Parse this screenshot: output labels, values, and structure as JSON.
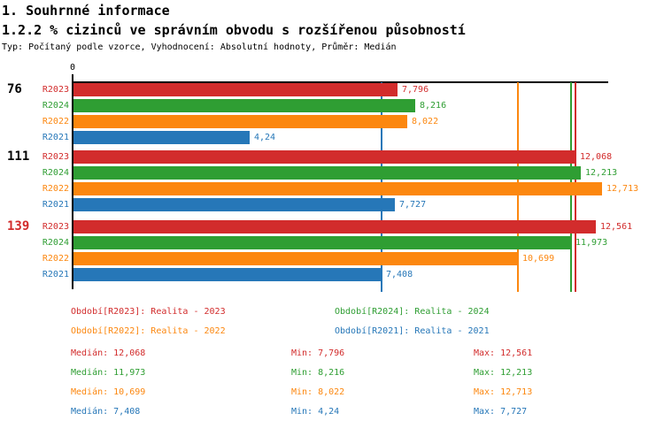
{
  "header": {
    "title": "1. Souhrnné informace",
    "subtitle": "1.2.2 % cizinců ve správním obvodu s rozšířenou působností",
    "meta": "Typ: Počítaný podle vzorce, Vyhodnocení: Absolutní hodnoty, Průměr: Medián"
  },
  "colors": {
    "R2023": "#d22c2c",
    "R2024": "#2f9e33",
    "R2022": "#fc870f",
    "R2021": "#2677b8",
    "axis": "#000000",
    "group_label_highlight": "#d22c2c"
  },
  "axis": {
    "zero_label": "0"
  },
  "chart_data": {
    "type": "bar",
    "orientation": "horizontal",
    "title": "1.2.2 % cizinců ve správním obvodu s rozšířenou působností",
    "x_range": [
      0,
      12.86
    ],
    "grid": false,
    "legend_position": "bottom",
    "series_order": [
      "R2023",
      "R2024",
      "R2022",
      "R2021"
    ],
    "categories": [
      "76",
      "111",
      "139"
    ],
    "groups": [
      {
        "label": "76",
        "label_color": "#000000",
        "bars": [
          {
            "series": "R2023",
            "value": 7.796,
            "value_label": "7,796"
          },
          {
            "series": "R2024",
            "value": 8.216,
            "value_label": "8,216"
          },
          {
            "series": "R2022",
            "value": 8.022,
            "value_label": "8,022"
          },
          {
            "series": "R2021",
            "value": 4.24,
            "value_label": "4,24"
          }
        ]
      },
      {
        "label": "111",
        "label_color": "#000000",
        "bars": [
          {
            "series": "R2023",
            "value": 12.068,
            "value_label": "12,068"
          },
          {
            "series": "R2024",
            "value": 12.213,
            "value_label": "12,213"
          },
          {
            "series": "R2022",
            "value": 12.713,
            "value_label": "12,713"
          },
          {
            "series": "R2021",
            "value": 7.727,
            "value_label": "7,727"
          }
        ]
      },
      {
        "label": "139",
        "label_color": "#d22c2c",
        "bars": [
          {
            "series": "R2023",
            "value": 12.561,
            "value_label": "12,561"
          },
          {
            "series": "R2024",
            "value": 11.973,
            "value_label": "11,973"
          },
          {
            "series": "R2022",
            "value": 10.699,
            "value_label": "10,699"
          },
          {
            "series": "R2021",
            "value": 7.408,
            "value_label": "7,408"
          }
        ]
      }
    ],
    "median_lines": [
      {
        "series": "R2023",
        "value": 12.068
      },
      {
        "series": "R2024",
        "value": 11.973
      },
      {
        "series": "R2022",
        "value": 10.699
      },
      {
        "series": "R2021",
        "value": 7.408
      }
    ],
    "stats": [
      {
        "series": "R2023",
        "median": 12.068,
        "min": 7.796,
        "max": 12.561,
        "median_label": "Medián: 12,068",
        "min_label": "Min: 7,796",
        "max_label": "Max: 12,561"
      },
      {
        "series": "R2024",
        "median": 11.973,
        "min": 8.216,
        "max": 12.213,
        "median_label": "Medián: 11,973",
        "min_label": "Min: 8,216",
        "max_label": "Max: 12,213"
      },
      {
        "series": "R2022",
        "median": 10.699,
        "min": 8.022,
        "max": 12.713,
        "median_label": "Medián: 10,699",
        "min_label": "Min: 8,022",
        "max_label": "Max: 12,713"
      },
      {
        "series": "R2021",
        "median": 7.408,
        "min": 4.24,
        "max": 7.727,
        "median_label": "Medián: 7,408",
        "min_label": "Min: 4,24",
        "max_label": "Max: 7,727"
      }
    ]
  },
  "legend": {
    "items": [
      {
        "series": "R2023",
        "label": "Období[R2023]: Realita - 2023"
      },
      {
        "series": "R2024",
        "label": "Období[R2024]: Realita - 2024"
      },
      {
        "series": "R2022",
        "label": "Období[R2022]: Realita - 2022"
      },
      {
        "series": "R2021",
        "label": "Období[R2021]: Realita - 2021"
      }
    ]
  }
}
